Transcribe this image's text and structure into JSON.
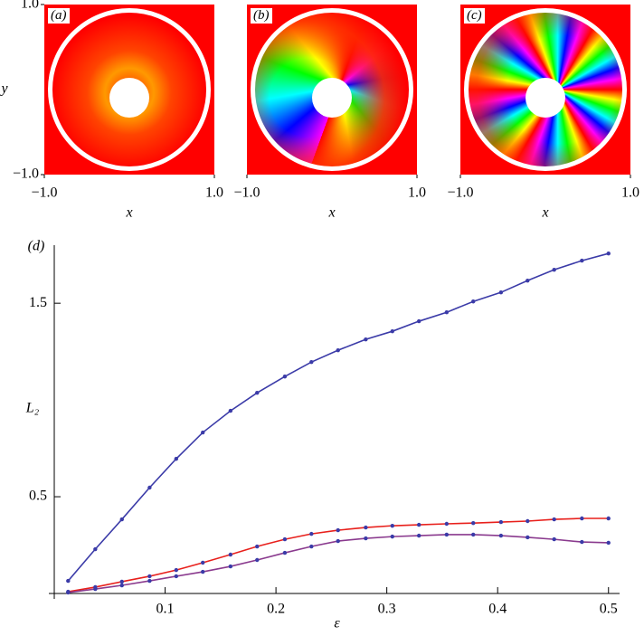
{
  "chart_data": [
    {
      "type": "image",
      "title": "(a)",
      "xlabel": "x",
      "ylabel": "y",
      "xlim": [
        -1,
        1
      ],
      "ylim": [
        -1,
        1
      ],
      "xticks": [
        {
          "value": -1,
          "label": "−1.0"
        },
        {
          "value": 1,
          "label": "1.0"
        }
      ],
      "yticks": [
        {
          "value": -1,
          "label": "−1.0"
        },
        {
          "value": 1,
          "label": "1.0"
        }
      ]
    },
    {
      "type": "image",
      "title": "(b)",
      "xlabel": "x",
      "xlim": [
        -1,
        1
      ],
      "xticks": [
        {
          "value": -1,
          "label": "−1.0"
        },
        {
          "value": 1,
          "label": "1.0"
        }
      ]
    },
    {
      "type": "image",
      "title": "(c)",
      "xlabel": "x",
      "xlim": [
        -1,
        1
      ],
      "xticks": [
        {
          "value": -1,
          "label": "−1.0"
        },
        {
          "value": 1,
          "label": "1.0"
        }
      ]
    },
    {
      "type": "line",
      "title": "(d)",
      "xlabel": "ε",
      "ylabel": "L₂",
      "x": [
        0.0125,
        0.037,
        0.061,
        0.086,
        0.11,
        0.134,
        0.159,
        0.183,
        0.208,
        0.232,
        0.256,
        0.281,
        0.305,
        0.329,
        0.354,
        0.378,
        0.403,
        0.427,
        0.451,
        0.476,
        0.5
      ],
      "series": [
        {
          "color": "#3b3ba8",
          "values": [
            0.065,
            0.229,
            0.383,
            0.547,
            0.696,
            0.832,
            0.944,
            1.037,
            1.121,
            1.196,
            1.257,
            1.313,
            1.355,
            1.407,
            1.453,
            1.509,
            1.556,
            1.617,
            1.673,
            1.72,
            1.757
          ]
        },
        {
          "color": "#e8201c",
          "values": [
            0.009,
            0.033,
            0.061,
            0.089,
            0.121,
            0.159,
            0.201,
            0.243,
            0.28,
            0.308,
            0.327,
            0.341,
            0.35,
            0.355,
            0.36,
            0.364,
            0.369,
            0.374,
            0.383,
            0.388,
            0.388
          ]
        },
        {
          "color": "#8a3a8e",
          "values": [
            0.005,
            0.023,
            0.042,
            0.065,
            0.089,
            0.112,
            0.14,
            0.173,
            0.21,
            0.243,
            0.271,
            0.285,
            0.294,
            0.299,
            0.304,
            0.304,
            0.299,
            0.29,
            0.28,
            0.266,
            0.262
          ]
        }
      ],
      "marker_color": "#3b3ba8",
      "xlim": [
        0,
        0.51
      ],
      "ylim": [
        0,
        1.8
      ],
      "xticks": [
        0.1,
        0.2,
        0.3,
        0.4,
        0.5
      ],
      "yticks": [
        0.5,
        1.5
      ]
    }
  ]
}
